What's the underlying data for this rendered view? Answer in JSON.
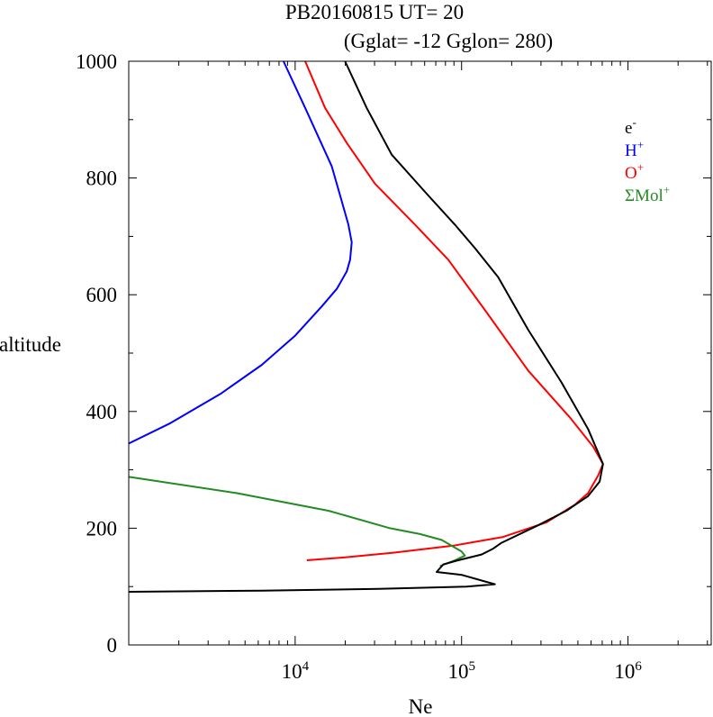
{
  "chart_data": {
    "type": "line",
    "title_line1": "PB20160815   UT=  20",
    "title_line2": "(Gglat= -12   Gglon=  280)",
    "xlabel": "Ne",
    "ylabel": "altitude",
    "xscale": "log",
    "xlim": [
      1000,
      3162278
    ],
    "ylim": [
      0,
      1000
    ],
    "x_ticks": [
      {
        "value": 10000,
        "base": "10",
        "exp": "4"
      },
      {
        "value": 100000,
        "base": "10",
        "exp": "5"
      },
      {
        "value": 1000000,
        "base": "10",
        "exp": "6"
      }
    ],
    "y_ticks": [
      0,
      200,
      400,
      600,
      800,
      1000
    ],
    "legend": {
      "position": "top-right",
      "entries": [
        {
          "base": "e",
          "sup": "-",
          "color": "#000000"
        },
        {
          "base": "H",
          "sup": "+",
          "color": "#0000ff"
        },
        {
          "base": "O",
          "sup": "+",
          "color": "#ff0000"
        },
        {
          "base": "ΣMol",
          "sup": "+",
          "color": "#228b22"
        }
      ]
    },
    "series": [
      {
        "name": "H+",
        "color": "#0000ff",
        "points": [
          [
            8511,
            1000
          ],
          [
            11482,
            920
          ],
          [
            16596,
            820
          ],
          [
            18621,
            770
          ],
          [
            20893,
            720
          ],
          [
            21878,
            690
          ],
          [
            21380,
            660
          ],
          [
            20417,
            640
          ],
          [
            17783,
            610
          ],
          [
            14454,
            580
          ],
          [
            10000,
            530
          ],
          [
            6310,
            480
          ],
          [
            3548,
            430
          ],
          [
            1778,
            380
          ],
          [
            1000,
            345
          ]
        ]
      },
      {
        "name": "O+",
        "color": "#ff0000",
        "points": [
          [
            11482,
            1000
          ],
          [
            15135,
            920
          ],
          [
            20417,
            860
          ],
          [
            30200,
            790
          ],
          [
            52480,
            720
          ],
          [
            83176,
            660
          ],
          [
            141254,
            570
          ],
          [
            251189,
            470
          ],
          [
            446684,
            390
          ],
          [
            616595,
            340
          ],
          [
            707946,
            310
          ],
          [
            660693,
            290
          ],
          [
            575440,
            260
          ],
          [
            478630,
            240
          ],
          [
            323594,
            210
          ],
          [
            177828,
            185
          ],
          [
            89125,
            170
          ],
          [
            38905,
            158
          ],
          [
            19953,
            150
          ],
          [
            11749,
            145
          ]
        ]
      },
      {
        "name": "ΣMol+",
        "color": "#228b22",
        "points": [
          [
            1000,
            288
          ],
          [
            4467,
            260
          ],
          [
            15849,
            230
          ],
          [
            37154,
            200
          ],
          [
            56234,
            190
          ],
          [
            75858,
            180
          ],
          [
            100000,
            160
          ],
          [
            104713,
            153
          ],
          [
            91201,
            145
          ],
          [
            74131,
            135
          ]
        ]
      },
      {
        "name": "e-",
        "color": "#000000",
        "points": [
          [
            19953,
            1000
          ],
          [
            26915,
            920
          ],
          [
            38019,
            840
          ],
          [
            63096,
            770
          ],
          [
            91201,
            720
          ],
          [
            120226,
            680
          ],
          [
            165959,
            630
          ],
          [
            251189,
            540
          ],
          [
            398107,
            450
          ],
          [
            575440,
            370
          ],
          [
            707946,
            310
          ],
          [
            676083,
            280
          ],
          [
            575440,
            255
          ],
          [
            426580,
            230
          ],
          [
            288403,
            205
          ],
          [
            173780,
            175
          ],
          [
            154882,
            165
          ],
          [
            131826,
            155
          ],
          [
            95499,
            145
          ],
          [
            77625,
            138
          ],
          [
            70795,
            125
          ],
          [
            100000,
            120
          ],
          [
            158489,
            104
          ],
          [
            107152,
            100
          ],
          [
            31623,
            96
          ],
          [
            6310,
            93
          ],
          [
            1000,
            91
          ]
        ]
      }
    ]
  }
}
